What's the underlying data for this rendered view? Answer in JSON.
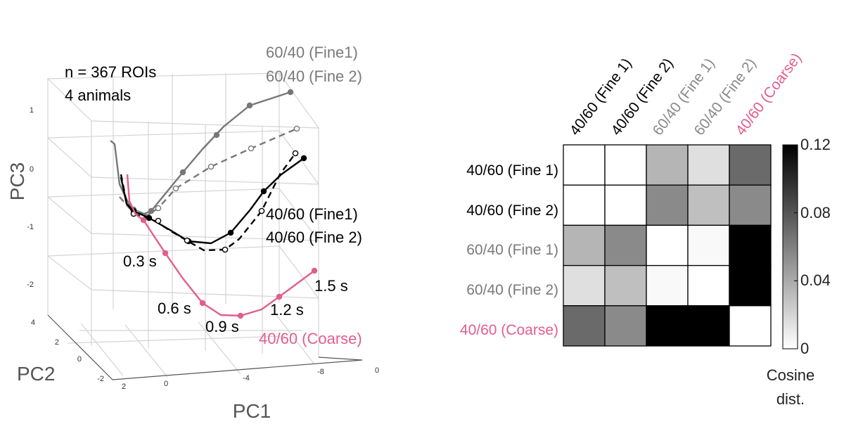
{
  "chart_data": [
    {
      "type": "line",
      "projection": "3d",
      "xlabel": "PC1",
      "ylabel": "PC2",
      "zlabel": "PC3",
      "pc1_ticks": [
        "2",
        "0",
        "-4",
        "-8",
        "0"
      ],
      "pc2_ticks": [
        "4",
        "2",
        "0",
        "-2"
      ],
      "pc3_ticks": [
        "1",
        "0",
        "-1",
        "-2"
      ],
      "info_lines": [
        "n = 367 ROIs",
        "4 animals"
      ],
      "grid": true,
      "series": [
        {
          "name": "60/40 (Fine1)",
          "color": "#777777",
          "line_style": "solid",
          "marker": "filled"
        },
        {
          "name": "60/40 (Fine 2)",
          "color": "#777777",
          "line_style": "dashed",
          "marker": "open"
        },
        {
          "name": "40/60 (Fine1)",
          "color": "#000000",
          "line_style": "solid",
          "marker": "filled"
        },
        {
          "name": "40/60 (Fine 2)",
          "color": "#000000",
          "line_style": "dashed",
          "marker": "open"
        },
        {
          "name": "40/60 (Coarse)",
          "color": "#e35d8e",
          "line_style": "solid",
          "marker": "filled"
        }
      ],
      "time_labels": [
        "0.3 s",
        "0.6 s",
        "0.9 s",
        "1.2 s",
        "1.5 s"
      ]
    },
    {
      "type": "heatmap",
      "rows": [
        "40/60 (Fine 1)",
        "40/60 (Fine 2)",
        "60/40 (Fine 1)",
        "60/40 (Fine 2)",
        "40/60 (Coarse)"
      ],
      "columns": [
        "40/60 (Fine 1)",
        "40/60 (Fine 2)",
        "60/40 (Fine 1)",
        "60/40 (Fine 2)",
        "40/60 (Coarse)"
      ],
      "label_colors": [
        "#000000",
        "#000000",
        "#7a7a7a",
        "#7a7a7a",
        "#e35d8e"
      ],
      "values": [
        [
          0.0,
          0.0,
          0.035,
          0.015,
          0.07
        ],
        [
          0.0,
          0.0,
          0.055,
          0.03,
          0.055
        ],
        [
          0.035,
          0.055,
          0.0,
          0.003,
          0.12
        ],
        [
          0.015,
          0.03,
          0.003,
          0.0,
          0.12
        ],
        [
          0.07,
          0.055,
          0.12,
          0.12,
          0.0
        ]
      ],
      "colorbar": {
        "min": 0,
        "max": 0.12,
        "ticks": [
          "0.12",
          "0.08",
          "0.04",
          "0"
        ],
        "label_lines": [
          "Cosine",
          "dist."
        ]
      }
    }
  ]
}
